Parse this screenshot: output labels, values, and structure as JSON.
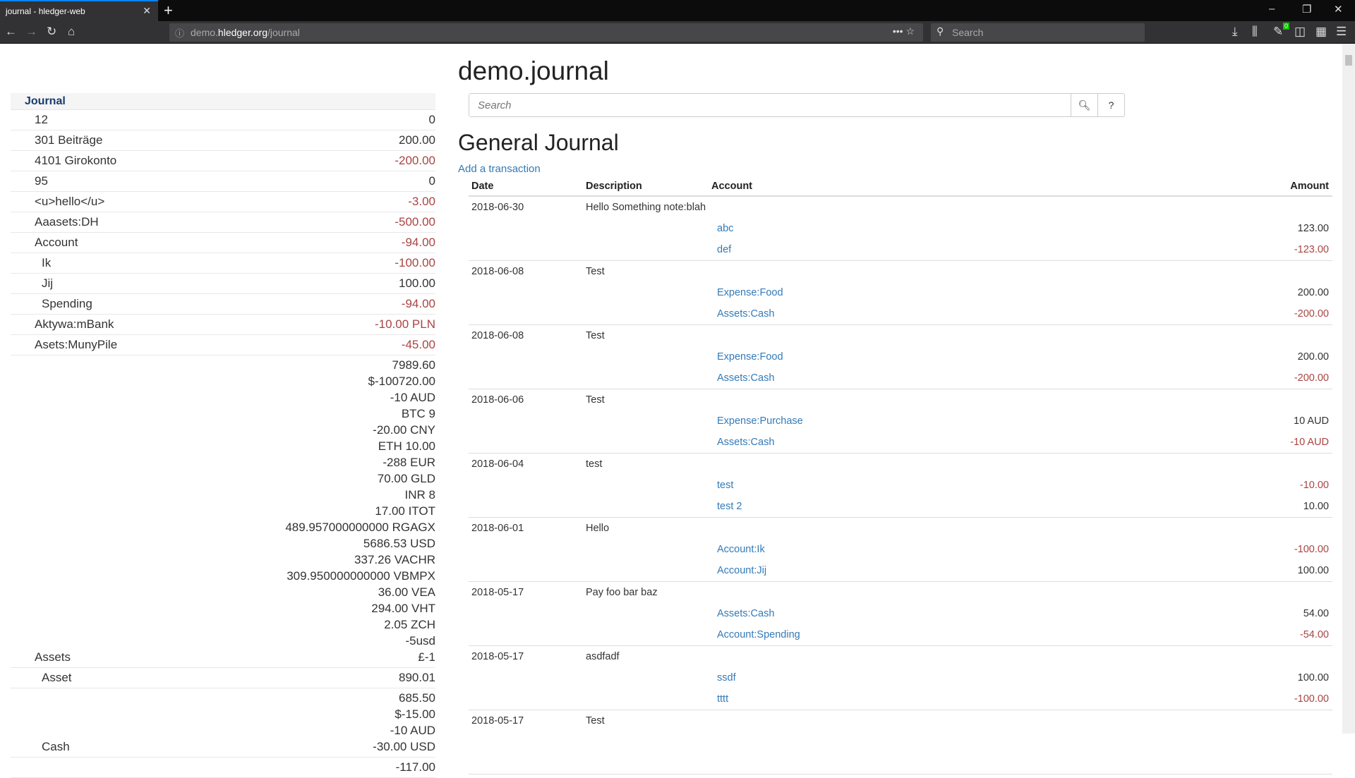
{
  "browser": {
    "tab_title": "journal - hledger-web",
    "url_prefix": "demo.",
    "url_domain": "hledger.org",
    "url_path": "/journal",
    "search_placeholder": "Search",
    "badge": "0"
  },
  "sidebar": {
    "header": "Journal",
    "rows": [
      {
        "name": "12",
        "indent": 1,
        "amounts": [
          {
            "v": "0"
          }
        ]
      },
      {
        "name": "301 Beiträge",
        "indent": 1,
        "amounts": [
          {
            "v": "200.00"
          }
        ]
      },
      {
        "name": "4101 Girokonto",
        "indent": 1,
        "amounts": [
          {
            "v": "-200.00",
            "neg": true
          }
        ]
      },
      {
        "name": "95",
        "indent": 1,
        "amounts": [
          {
            "v": "0"
          }
        ]
      },
      {
        "name": "<u>hello</u>",
        "indent": 1,
        "amounts": [
          {
            "v": "-3.00",
            "neg": true
          }
        ]
      },
      {
        "name": "Aaasets:DH",
        "indent": 1,
        "amounts": [
          {
            "v": "-500.00",
            "neg": true
          }
        ]
      },
      {
        "name": "Account",
        "indent": 1,
        "amounts": [
          {
            "v": "-94.00",
            "neg": true
          }
        ]
      },
      {
        "name": "Ik",
        "indent": 2,
        "amounts": [
          {
            "v": "-100.00",
            "neg": true
          }
        ]
      },
      {
        "name": "Jij",
        "indent": 2,
        "amounts": [
          {
            "v": "100.00"
          }
        ]
      },
      {
        "name": "Spending",
        "indent": 2,
        "amounts": [
          {
            "v": "-94.00",
            "neg": true
          }
        ]
      },
      {
        "name": "Aktywa:mBank",
        "indent": 1,
        "amounts": [
          {
            "v": "-10.00 PLN",
            "neg": true
          }
        ]
      },
      {
        "name": "Asets:MunyPile",
        "indent": 1,
        "amounts": [
          {
            "v": "-45.00",
            "neg": true
          }
        ]
      },
      {
        "name": "Assets",
        "indent": 1,
        "amounts": [
          {
            "v": "7989.60"
          },
          {
            "v": "$-100720.00"
          },
          {
            "v": "-10 AUD"
          },
          {
            "v": "BTC 9"
          },
          {
            "v": "-20.00 CNY"
          },
          {
            "v": "ETH 10.00"
          },
          {
            "v": "-288 EUR"
          },
          {
            "v": "70.00 GLD"
          },
          {
            "v": "INR 8"
          },
          {
            "v": "17.00 ITOT"
          },
          {
            "v": "489.957000000000 RGAGX"
          },
          {
            "v": "5686.53 USD"
          },
          {
            "v": "337.26 VACHR"
          },
          {
            "v": "309.950000000000 VBMPX"
          },
          {
            "v": "36.00 VEA"
          },
          {
            "v": "294.00 VHT"
          },
          {
            "v": "2.05 ZCH"
          },
          {
            "v": "-5usd"
          },
          {
            "v": "£-1"
          }
        ]
      },
      {
        "name": "Asset",
        "indent": 2,
        "amounts": [
          {
            "v": "890.01"
          }
        ]
      },
      {
        "name": "Cash",
        "indent": 2,
        "amounts": [
          {
            "v": "685.50"
          },
          {
            "v": "$-15.00"
          },
          {
            "v": "-10 AUD"
          },
          {
            "v": "-30.00 USD"
          }
        ]
      },
      {
        "name": "",
        "indent": 2,
        "amounts": [
          {
            "v": "-117.00"
          }
        ]
      }
    ]
  },
  "main": {
    "title": "demo.journal",
    "search_placeholder": "Search",
    "help_label": "?",
    "journal_title": "General Journal",
    "add_transaction": "Add a transaction",
    "columns": [
      "Date",
      "Description",
      "Account",
      "Amount"
    ],
    "transactions": [
      {
        "date": "2018-06-30",
        "desc": "Hello Something note:blah",
        "postings": [
          {
            "account": "abc",
            "amount": "123.00"
          },
          {
            "account": "def",
            "amount": "-123.00",
            "neg": true
          }
        ]
      },
      {
        "date": "2018-06-08",
        "desc": "Test",
        "postings": [
          {
            "account": "Expense:Food",
            "amount": "200.00"
          },
          {
            "account": "Assets:Cash",
            "amount": "-200.00",
            "neg": true
          }
        ]
      },
      {
        "date": "2018-06-08",
        "desc": "Test",
        "postings": [
          {
            "account": "Expense:Food",
            "amount": "200.00"
          },
          {
            "account": "Assets:Cash",
            "amount": "-200.00",
            "neg": true
          }
        ]
      },
      {
        "date": "2018-06-06",
        "desc": "Test",
        "postings": [
          {
            "account": "Expense:Purchase",
            "amount": "10 AUD"
          },
          {
            "account": "Assets:Cash",
            "amount": "-10 AUD",
            "neg": true
          }
        ]
      },
      {
        "date": "2018-06-04",
        "desc": "test",
        "postings": [
          {
            "account": "test",
            "amount": "-10.00",
            "neg": true
          },
          {
            "account": "test 2",
            "amount": "10.00"
          }
        ]
      },
      {
        "date": "2018-06-01",
        "desc": "Hello",
        "postings": [
          {
            "account": "Account:Ik",
            "amount": "-100.00",
            "neg": true
          },
          {
            "account": "Account:Jij",
            "amount": "100.00"
          }
        ]
      },
      {
        "date": "2018-05-17",
        "desc": "Pay foo bar baz",
        "postings": [
          {
            "account": "Assets:Cash",
            "amount": "54.00"
          },
          {
            "account": "Account:Spending",
            "amount": "-54.00",
            "neg": true
          }
        ]
      },
      {
        "date": "2018-05-17",
        "desc": "asdfadf",
        "postings": [
          {
            "account": "ssdf",
            "amount": "100.00"
          },
          {
            "account": "tttt",
            "amount": "-100.00",
            "neg": true
          }
        ]
      },
      {
        "date": "2018-05-17",
        "desc": "Test",
        "postings": []
      }
    ]
  },
  "colors": {
    "negative": "#a94442",
    "link": "#337ab7",
    "sidebar_header": "#1a3a6e"
  }
}
